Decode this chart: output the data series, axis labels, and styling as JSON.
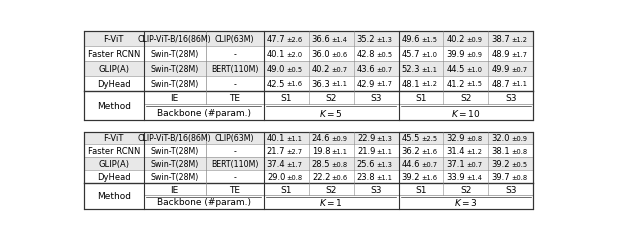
{
  "top_table": {
    "k1_label": "K = 1",
    "k2_label": "K = 3",
    "rows": [
      [
        "DyHead",
        "Swin-T(28M)",
        "-",
        "29.0",
        "0.8",
        "22.2",
        "0.6",
        "23.8",
        "1.1",
        "39.2",
        "1.6",
        "33.9",
        "1.4",
        "39.7",
        "0.8"
      ],
      [
        "GLIP(A)",
        "Swin-T(28M)",
        "BERT(110M)",
        "37.4",
        "1.7",
        "28.5",
        "0.8",
        "25.6",
        "1.3",
        "44.6",
        "0.7",
        "37.1",
        "0.7",
        "39.2",
        "0.5"
      ],
      [
        "Faster RCNN",
        "Swin-T(28M)",
        "-",
        "21.7",
        "2.7",
        "19.8",
        "1.1",
        "21.9",
        "1.1",
        "36.2",
        "1.6",
        "31.4",
        "1.2",
        "38.1",
        "0.8"
      ],
      [
        "F-ViT",
        "CLIP-ViT-B/16(86M)",
        "CLIP(63M)",
        "40.1",
        "1.1",
        "24.6",
        "0.9",
        "22.9",
        "1.3",
        "45.5",
        "2.5",
        "32.9",
        "0.8",
        "32.0",
        "0.9"
      ]
    ]
  },
  "bottom_table": {
    "k1_label": "K = 5",
    "k2_label": "K = 10",
    "rows": [
      [
        "DyHead",
        "Swin-T(28M)",
        "-",
        "42.5",
        "1.6",
        "36.3",
        "1.1",
        "42.9",
        "1.7",
        "48.1",
        "1.2",
        "41.2",
        "1.5",
        "48.7",
        "1.1"
      ],
      [
        "GLIP(A)",
        "Swin-T(28M)",
        "BERT(110M)",
        "49.0",
        "0.5",
        "40.2",
        "0.7",
        "43.6",
        "0.7",
        "52.3",
        "1.1",
        "44.5",
        "1.0",
        "49.9",
        "0.7"
      ],
      [
        "Faster RCNN",
        "Swin-T(28M)",
        "-",
        "40.1",
        "2.0",
        "36.0",
        "0.6",
        "42.8",
        "0.5",
        "45.7",
        "1.0",
        "39.9",
        "0.9",
        "48.9",
        "1.7"
      ],
      [
        "F-ViT",
        "CLIP-ViT-B/16(86M)",
        "CLIP(63M)",
        "47.7",
        "2.6",
        "36.6",
        "1.4",
        "35.2",
        "1.3",
        "49.6",
        "1.5",
        "40.2",
        "0.9",
        "38.7",
        "1.2"
      ]
    ]
  },
  "bg_color": "#ffffff",
  "row_shade": "#e8e8e8",
  "line_color": "#888888",
  "strong_line": "#333333",
  "font_size": 6.0,
  "small_font_size": 4.8,
  "header_font_size": 6.5
}
